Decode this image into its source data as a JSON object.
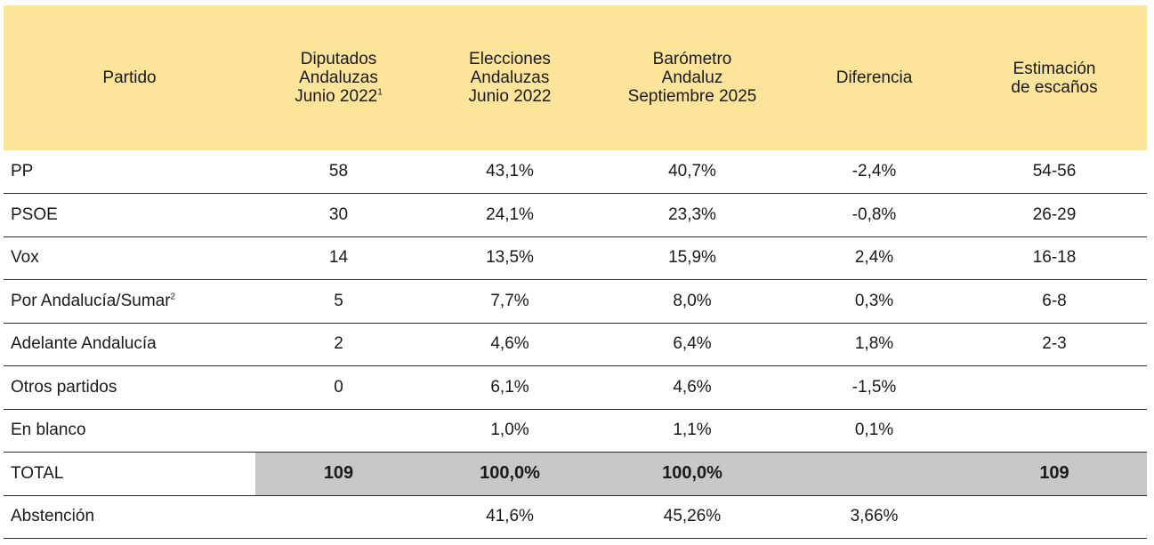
{
  "table": {
    "headers": [
      {
        "text": "Partido",
        "sup": ""
      },
      {
        "line1": "Diputados",
        "line2": "Andaluzas",
        "line3": "Junio 2022",
        "sup": "1"
      },
      {
        "line1": "Elecciones",
        "line2": "Andaluzas",
        "line3": "Junio 2022"
      },
      {
        "line1": "Barómetro",
        "line2": "Andaluz",
        "line3": "Septiembre 2025"
      },
      {
        "text": "Diferencia"
      },
      {
        "line1": "Estimación",
        "line2": "de escaños"
      }
    ],
    "rows": [
      {
        "party": "PP",
        "sup": "",
        "diputados": "58",
        "elecciones": "43,1%",
        "barometro": "40,7%",
        "diferencia": "-2,4%",
        "estimacion": "54-56"
      },
      {
        "party": "PSOE",
        "sup": "",
        "diputados": "30",
        "elecciones": "24,1%",
        "barometro": "23,3%",
        "diferencia": "-0,8%",
        "estimacion": "26-29"
      },
      {
        "party": "Vox",
        "sup": "",
        "diputados": "14",
        "elecciones": "13,5%",
        "barometro": "15,9%",
        "diferencia": "2,4%",
        "estimacion": "16-18"
      },
      {
        "party": "Por Andalucía/Sumar",
        "sup": "2",
        "diputados": "5",
        "elecciones": "7,7%",
        "barometro": "8,0%",
        "diferencia": "0,3%",
        "estimacion": "6-8"
      },
      {
        "party": "Adelante Andalucía",
        "sup": "",
        "diputados": "2",
        "elecciones": "4,6%",
        "barometro": "6,4%",
        "diferencia": "1,8%",
        "estimacion": "2-3"
      },
      {
        "party": "Otros partidos",
        "sup": "",
        "diputados": "0",
        "elecciones": "6,1%",
        "barometro": "4,6%",
        "diferencia": "-1,5%",
        "estimacion": ""
      },
      {
        "party": "En blanco",
        "sup": "",
        "diputados": "",
        "elecciones": "1,0%",
        "barometro": "1,1%",
        "diferencia": "0,1%",
        "estimacion": ""
      }
    ],
    "total": {
      "party": "TOTAL",
      "diputados": "109",
      "elecciones": "100,0%",
      "barometro": "100,0%",
      "diferencia": "",
      "estimacion": "109"
    },
    "abstencion": {
      "party": "Abstención",
      "diputados": "",
      "elecciones": "41,6%",
      "barometro": "45,26%",
      "diferencia": "3,66%",
      "estimacion": ""
    }
  },
  "colors": {
    "header_bg": "#fce49a",
    "total_bg": "#c8c8c8",
    "rule": "#2a2a2a"
  }
}
